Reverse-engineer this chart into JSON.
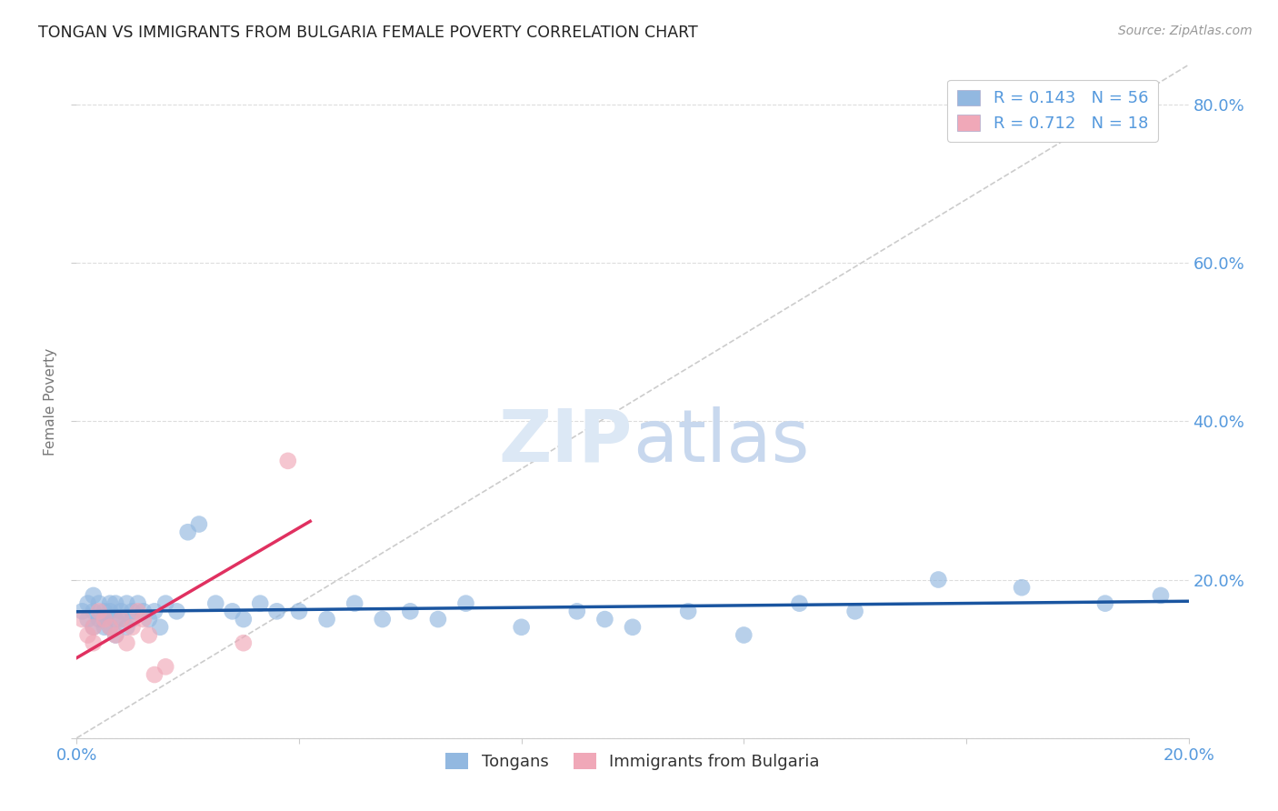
{
  "title": "TONGAN VS IMMIGRANTS FROM BULGARIA FEMALE POVERTY CORRELATION CHART",
  "source": "Source: ZipAtlas.com",
  "ylabel_label": "Female Poverty",
  "xlim": [
    0.0,
    0.2
  ],
  "ylim": [
    0.0,
    0.85
  ],
  "tongan_R": 0.143,
  "tongan_N": 56,
  "bulgaria_R": 0.712,
  "bulgaria_N": 18,
  "tongan_color": "#92b8e0",
  "tongan_line_color": "#1a55a0",
  "bulgaria_color": "#f0a8b8",
  "bulgaria_line_color": "#e03060",
  "diagonal_color": "#cccccc",
  "background_color": "#ffffff",
  "grid_color": "#dddddd",
  "tick_color": "#5599dd",
  "title_color": "#222222",
  "source_color": "#999999",
  "watermark_color": "#dce8f5",
  "tongan_x": [
    0.001,
    0.002,
    0.002,
    0.003,
    0.003,
    0.003,
    0.004,
    0.004,
    0.005,
    0.005,
    0.005,
    0.006,
    0.006,
    0.006,
    0.007,
    0.007,
    0.007,
    0.008,
    0.008,
    0.009,
    0.009,
    0.01,
    0.01,
    0.011,
    0.012,
    0.013,
    0.014,
    0.015,
    0.016,
    0.018,
    0.02,
    0.022,
    0.025,
    0.028,
    0.03,
    0.033,
    0.036,
    0.04,
    0.045,
    0.05,
    0.055,
    0.06,
    0.065,
    0.07,
    0.08,
    0.09,
    0.095,
    0.1,
    0.11,
    0.12,
    0.13,
    0.14,
    0.155,
    0.17,
    0.185,
    0.195
  ],
  "tongan_y": [
    0.16,
    0.17,
    0.15,
    0.14,
    0.16,
    0.18,
    0.15,
    0.17,
    0.14,
    0.16,
    0.15,
    0.17,
    0.14,
    0.16,
    0.15,
    0.17,
    0.13,
    0.16,
    0.15,
    0.14,
    0.17,
    0.15,
    0.16,
    0.17,
    0.16,
    0.15,
    0.16,
    0.14,
    0.17,
    0.16,
    0.26,
    0.27,
    0.17,
    0.16,
    0.15,
    0.17,
    0.16,
    0.16,
    0.15,
    0.17,
    0.15,
    0.16,
    0.15,
    0.17,
    0.14,
    0.16,
    0.15,
    0.14,
    0.16,
    0.13,
    0.17,
    0.16,
    0.2,
    0.19,
    0.17,
    0.18
  ],
  "bulgaria_x": [
    0.001,
    0.002,
    0.003,
    0.003,
    0.004,
    0.005,
    0.006,
    0.007,
    0.008,
    0.009,
    0.01,
    0.011,
    0.012,
    0.013,
    0.014,
    0.016,
    0.03,
    0.038
  ],
  "bulgaria_y": [
    0.15,
    0.13,
    0.14,
    0.12,
    0.16,
    0.15,
    0.14,
    0.13,
    0.15,
    0.12,
    0.14,
    0.16,
    0.15,
    0.13,
    0.08,
    0.09,
    0.12,
    0.35
  ],
  "marker_size": 180
}
